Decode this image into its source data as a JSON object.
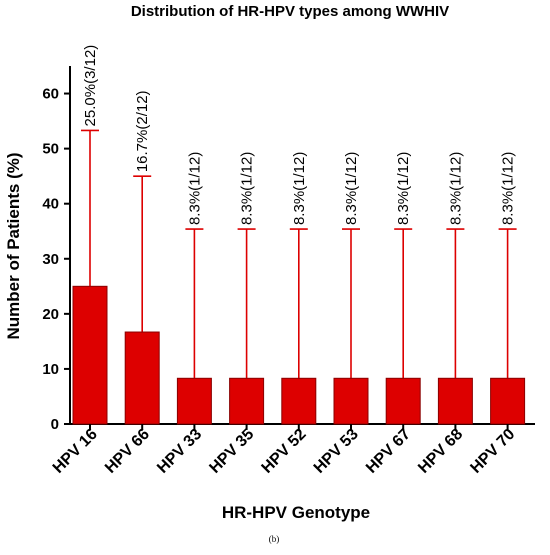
{
  "chart_data": {
    "type": "bar",
    "title": "Distribution of HR-HPV types among WWHIV",
    "xlabel": "HR-HPV Genotype",
    "ylabel": "Number of Patients (%)",
    "ylim": [
      0,
      65
    ],
    "yticks": [
      0,
      10,
      20,
      30,
      40,
      50,
      60
    ],
    "categories": [
      "HPV 16",
      "HPV 66",
      "HPV 33",
      "HPV 35",
      "HPV 52",
      "HPV 53",
      "HPV 67",
      "HPV 68",
      "HPV 70"
    ],
    "values": [
      25.0,
      16.7,
      8.3,
      8.3,
      8.3,
      8.3,
      8.3,
      8.3,
      8.3
    ],
    "error_upper": [
      53.3,
      45.0,
      35.4,
      35.4,
      35.4,
      35.4,
      35.4,
      35.4,
      35.4
    ],
    "data_labels": [
      "25.0%(3/12)",
      "16.7%(2/12)",
      "8.3%(1/12)",
      "8.3%(1/12)",
      "8.3%(1/12)",
      "8.3%(1/12)",
      "8.3%(1/12)",
      "8.3%(1/12)",
      "8.3%(1/12)"
    ],
    "bar_color": "#dd0000",
    "grid": false,
    "legend": "none"
  },
  "caption": "(b)"
}
